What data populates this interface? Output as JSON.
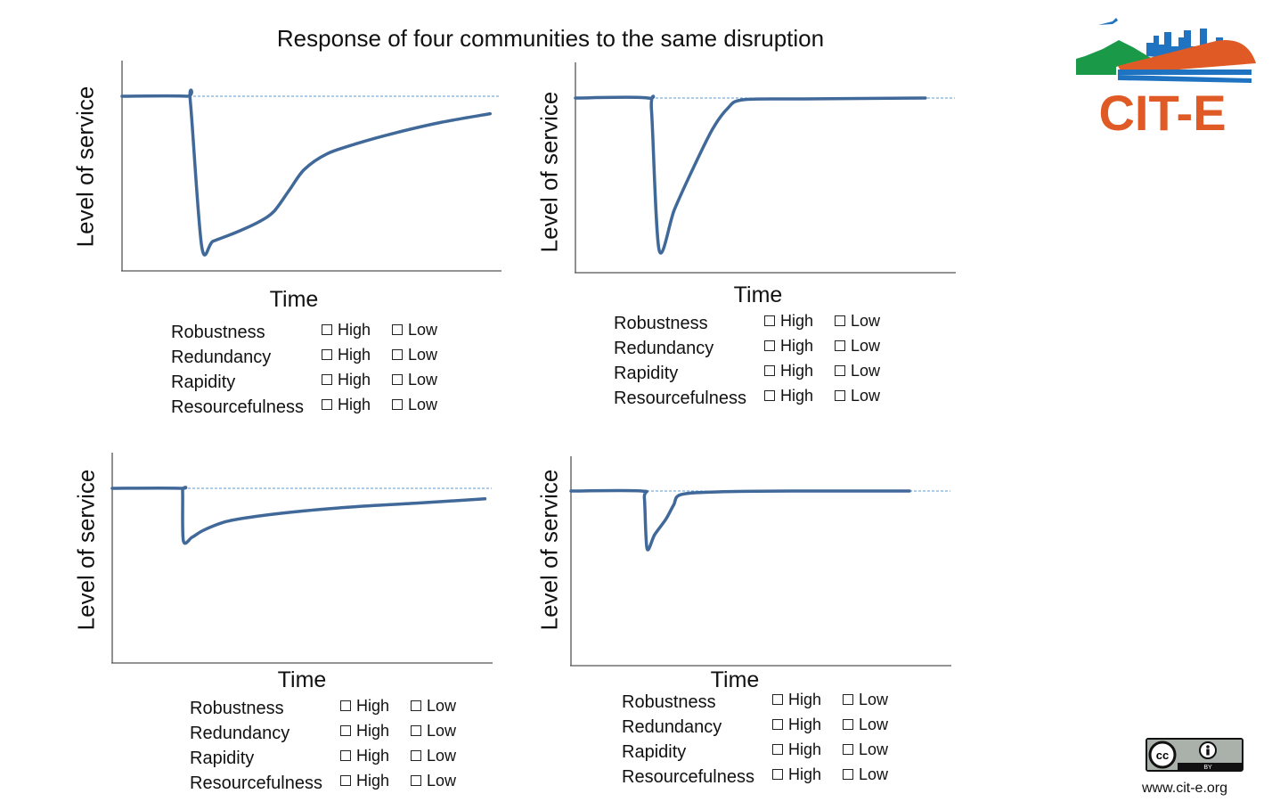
{
  "title": "Response of four communities to the same disruption",
  "options": {
    "high": "High",
    "low": "Low"
  },
  "brand": {
    "logo_text": "CIT-E",
    "website": "www.cit-e.org",
    "license_badge": "CC BY",
    "colors": {
      "orange": "#e05a26",
      "blue": "#1f73c0",
      "green": "#1a9a48",
      "curve": "#40699a",
      "baseline": "#5b9bd5"
    }
  },
  "chart_data": [
    {
      "type": "line",
      "xlabel": "Time",
      "ylabel": "Level of service",
      "baseline_level": 100,
      "xlim": [
        0,
        100
      ],
      "ylim": [
        0,
        100
      ],
      "x": [
        0,
        17,
        18,
        21,
        24,
        30,
        36,
        40,
        44,
        48,
        54,
        62,
        72,
        84,
        97
      ],
      "y": [
        100,
        100,
        97,
        14,
        17,
        22,
        28,
        34,
        46,
        58,
        67,
        73,
        79,
        85,
        90
      ],
      "ratings": [
        "Robustness",
        "Redundancy",
        "Rapidity",
        "Resourcefulness"
      ]
    },
    {
      "type": "line",
      "xlabel": "Time",
      "ylabel": "Level of service",
      "baseline_level": 100,
      "xlim": [
        0,
        100
      ],
      "ylim": [
        0,
        100
      ],
      "x": [
        0,
        19,
        20,
        22,
        26,
        31,
        36,
        40,
        44,
        60,
        92
      ],
      "y": [
        100,
        100,
        93,
        13,
        36,
        60,
        82,
        94,
        99,
        99.5,
        100
      ],
      "ratings": [
        "Robustness",
        "Redundancy",
        "Rapidity",
        "Resourcefulness"
      ]
    },
    {
      "type": "line",
      "xlabel": "Time",
      "ylabel": "Level of service",
      "baseline_level": 100,
      "xlim": [
        0,
        100
      ],
      "ylim": [
        0,
        100
      ],
      "x": [
        0,
        18,
        18.5,
        18.7,
        21,
        24,
        30,
        38,
        50,
        64,
        80,
        98
      ],
      "y": [
        100,
        100,
        98,
        70,
        72,
        76,
        81,
        84,
        87,
        89.5,
        91.5,
        94
      ],
      "ratings": [
        "Robustness",
        "Redundancy",
        "Rapidity",
        "Resourcefulness"
      ]
    },
    {
      "type": "line",
      "xlabel": "Time",
      "ylabel": "Level of service",
      "baseline_level": 100,
      "xlim": [
        0,
        100
      ],
      "ylim": [
        0,
        100
      ],
      "x": [
        0,
        18.5,
        19.3,
        20,
        22,
        25,
        27,
        29,
        40,
        60,
        89
      ],
      "y": [
        100,
        100,
        96,
        67,
        75,
        84,
        92,
        98,
        99.6,
        100,
        100
      ],
      "ratings": [
        "Robustness",
        "Redundancy",
        "Rapidity",
        "Resourcefulness"
      ]
    }
  ]
}
